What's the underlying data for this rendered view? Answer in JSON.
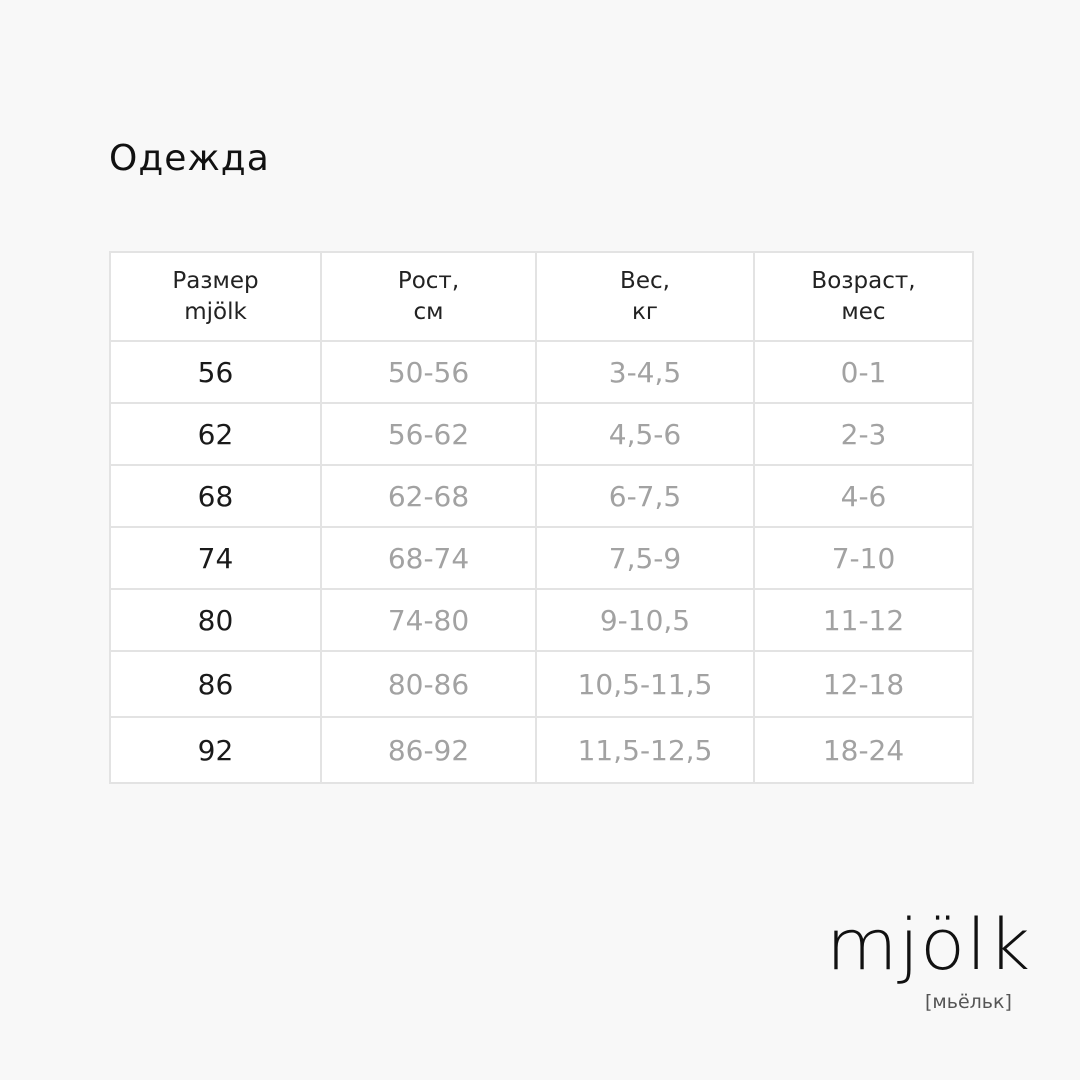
{
  "title": "Одежда",
  "table": {
    "headers": [
      [
        "Размер",
        "mjölk"
      ],
      [
        "Рост,",
        "см"
      ],
      [
        "Вес,",
        "кг"
      ],
      [
        "Возраст,",
        "мес"
      ]
    ],
    "rows": [
      [
        "56",
        "50-56",
        "3-4,5",
        "0-1"
      ],
      [
        "62",
        "56-62",
        "4,5-6",
        "2-3"
      ],
      [
        "68",
        "62-68",
        "6-7,5",
        "4-6"
      ],
      [
        "74",
        "68-74",
        "7,5-9",
        "7-10"
      ],
      [
        "80",
        "74-80",
        "9-10,5",
        "11-12"
      ],
      [
        "86",
        "80-86",
        "10,5-11,5",
        "12-18"
      ],
      [
        "92",
        "86-92",
        "11,5-12,5",
        "18-24"
      ]
    ]
  },
  "logo": {
    "name": "mjölk",
    "transliteration": "[мьёльк]"
  }
}
